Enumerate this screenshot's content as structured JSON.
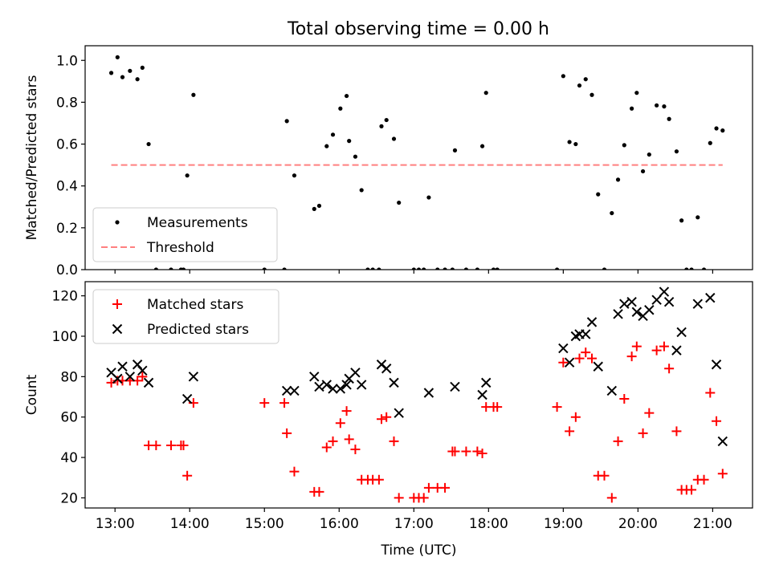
{
  "title": "Total observing time = 0.00 h",
  "colors": {
    "measurement": "#000000",
    "threshold": "#ff8080",
    "matched": "#ff0000",
    "predicted": "#000000"
  },
  "chart_data": [
    {
      "type": "scatter",
      "title": "Total observing time = 0.00 h",
      "xlabel": "",
      "ylabel": "Matched/Predicted stars",
      "xlim": [
        "12:36",
        "21:32"
      ],
      "ylim": [
        0,
        1.07
      ],
      "x_ticks": [
        "13:00",
        "14:00",
        "15:00",
        "16:00",
        "17:00",
        "18:00",
        "19:00",
        "20:00",
        "21:00"
      ],
      "y_ticks": [
        "0.0",
        "0.2",
        "0.4",
        "0.6",
        "0.8",
        "1.0"
      ],
      "legend_position": "lower-left",
      "grid": false,
      "series": [
        {
          "name": "Measurements",
          "marker": "dot",
          "points": [
            [
              "12:57",
              0.94
            ],
            [
              "13:02",
              1.015
            ],
            [
              "13:06",
              0.92
            ],
            [
              "13:12",
              0.95
            ],
            [
              "13:18",
              0.91
            ],
            [
              "13:22",
              0.965
            ],
            [
              "13:27",
              0.6
            ],
            [
              "13:33",
              0
            ],
            [
              "13:45",
              0
            ],
            [
              "13:53",
              0
            ],
            [
              "13:55",
              0
            ],
            [
              "13:58",
              0.45
            ],
            [
              "14:03",
              0.835
            ],
            [
              "15:00",
              0
            ],
            [
              "15:16",
              0
            ],
            [
              "15:18",
              0.71
            ],
            [
              "15:24",
              0.45
            ],
            [
              "15:40",
              0.29
            ],
            [
              "15:44",
              0.305
            ],
            [
              "15:50",
              0.59
            ],
            [
              "15:55",
              0.645
            ],
            [
              "16:01",
              0.77
            ],
            [
              "16:06",
              0.83
            ],
            [
              "16:08",
              0.615
            ],
            [
              "16:13",
              0.54
            ],
            [
              "16:18",
              0.38
            ],
            [
              "16:23",
              0
            ],
            [
              "16:27",
              0
            ],
            [
              "16:32",
              0
            ],
            [
              "16:34",
              0.685
            ],
            [
              "16:38",
              0.715
            ],
            [
              "16:44",
              0.625
            ],
            [
              "16:48",
              0.32
            ],
            [
              "17:00",
              0
            ],
            [
              "17:04",
              0
            ],
            [
              "17:08",
              0
            ],
            [
              "17:12",
              0.345
            ],
            [
              "17:19",
              0
            ],
            [
              "17:25",
              0
            ],
            [
              "17:31",
              0
            ],
            [
              "17:33",
              0.57
            ],
            [
              "17:42",
              0
            ],
            [
              "17:51",
              0
            ],
            [
              "17:55",
              0.59
            ],
            [
              "17:58",
              0.845
            ],
            [
              "18:04",
              0
            ],
            [
              "18:07",
              0
            ],
            [
              "18:55",
              0
            ],
            [
              "19:00",
              0.925
            ],
            [
              "19:05",
              0.61
            ],
            [
              "19:10",
              0.6
            ],
            [
              "19:13",
              0.88
            ],
            [
              "19:18",
              0.91
            ],
            [
              "19:23",
              0.835
            ],
            [
              "19:28",
              0.36
            ],
            [
              "19:33",
              0
            ],
            [
              "19:39",
              0.27
            ],
            [
              "19:44",
              0.43
            ],
            [
              "19:49",
              0.595
            ],
            [
              "19:55",
              0.77
            ],
            [
              "19:59",
              0.845
            ],
            [
              "20:04",
              0.47
            ],
            [
              "20:09",
              0.55
            ],
            [
              "20:15",
              0.785
            ],
            [
              "20:21",
              0.78
            ],
            [
              "20:25",
              0.72
            ],
            [
              "20:31",
              0.565
            ],
            [
              "20:35",
              0.235
            ],
            [
              "20:39",
              0
            ],
            [
              "20:43",
              0
            ],
            [
              "20:48",
              0.25
            ],
            [
              "20:53",
              0
            ],
            [
              "20:58",
              0.605
            ],
            [
              "21:03",
              0.675
            ],
            [
              "21:08",
              0.665
            ]
          ]
        },
        {
          "name": "Threshold",
          "style": "dashed-line",
          "points": [
            [
              "12:57",
              0.5
            ],
            [
              "21:08",
              0.5
            ]
          ]
        }
      ]
    },
    {
      "type": "scatter",
      "title": "",
      "xlabel": "Time (UTC)",
      "ylabel": "Count",
      "xlim": [
        "12:36",
        "21:32"
      ],
      "ylim": [
        15,
        127
      ],
      "x_ticks": [
        "13:00",
        "14:00",
        "15:00",
        "16:00",
        "17:00",
        "18:00",
        "19:00",
        "20:00",
        "21:00"
      ],
      "y_ticks": [
        "20",
        "40",
        "60",
        "80",
        "100",
        "120"
      ],
      "legend_position": "upper-left",
      "grid": false,
      "series": [
        {
          "name": "Matched stars",
          "marker": "plus",
          "points": [
            [
              "12:57",
              77
            ],
            [
              "13:02",
              78
            ],
            [
              "13:06",
              78
            ],
            [
              "13:12",
              78
            ],
            [
              "13:18",
              78
            ],
            [
              "13:22",
              80
            ],
            [
              "13:27",
              46
            ],
            [
              "13:33",
              46
            ],
            [
              "13:45",
              46
            ],
            [
              "13:53",
              46
            ],
            [
              "13:55",
              46
            ],
            [
              "13:58",
              31
            ],
            [
              "14:03",
              67
            ],
            [
              "15:00",
              67
            ],
            [
              "15:16",
              67
            ],
            [
              "15:18",
              52
            ],
            [
              "15:24",
              33
            ],
            [
              "15:40",
              23
            ],
            [
              "15:44",
              23
            ],
            [
              "15:50",
              45
            ],
            [
              "15:55",
              48
            ],
            [
              "16:01",
              57
            ],
            [
              "16:06",
              63
            ],
            [
              "16:08",
              49
            ],
            [
              "16:13",
              44
            ],
            [
              "16:18",
              29
            ],
            [
              "16:23",
              29
            ],
            [
              "16:27",
              29
            ],
            [
              "16:32",
              29
            ],
            [
              "16:34",
              59
            ],
            [
              "16:38",
              60
            ],
            [
              "16:44",
              48
            ],
            [
              "16:48",
              20
            ],
            [
              "17:00",
              20
            ],
            [
              "17:04",
              20
            ],
            [
              "17:08",
              20
            ],
            [
              "17:12",
              25
            ],
            [
              "17:19",
              25
            ],
            [
              "17:25",
              25
            ],
            [
              "17:31",
              43
            ],
            [
              "17:33",
              43
            ],
            [
              "17:42",
              43
            ],
            [
              "17:51",
              43
            ],
            [
              "17:55",
              42
            ],
            [
              "17:58",
              65
            ],
            [
              "18:04",
              65
            ],
            [
              "18:07",
              65
            ],
            [
              "18:55",
              65
            ],
            [
              "19:00",
              87
            ],
            [
              "19:05",
              53
            ],
            [
              "19:10",
              60
            ],
            [
              "19:13",
              89
            ],
            [
              "19:18",
              92
            ],
            [
              "19:23",
              89
            ],
            [
              "19:28",
              31
            ],
            [
              "19:33",
              31
            ],
            [
              "19:39",
              20
            ],
            [
              "19:44",
              48
            ],
            [
              "19:49",
              69
            ],
            [
              "19:55",
              90
            ],
            [
              "19:59",
              95
            ],
            [
              "20:04",
              52
            ],
            [
              "20:09",
              62
            ],
            [
              "20:15",
              93
            ],
            [
              "20:21",
              95
            ],
            [
              "20:25",
              84
            ],
            [
              "20:31",
              53
            ],
            [
              "20:35",
              24
            ],
            [
              "20:39",
              24
            ],
            [
              "20:43",
              24
            ],
            [
              "20:48",
              29
            ],
            [
              "20:53",
              29
            ],
            [
              "20:58",
              72
            ],
            [
              "21:03",
              58
            ],
            [
              "21:08",
              32
            ]
          ]
        },
        {
          "name": "Predicted stars",
          "marker": "x",
          "points": [
            [
              "12:57",
              82
            ],
            [
              "13:02",
              79
            ],
            [
              "13:06",
              85
            ],
            [
              "13:12",
              80
            ],
            [
              "13:18",
              86
            ],
            [
              "13:22",
              83
            ],
            [
              "13:27",
              77
            ],
            [
              "13:58",
              69
            ],
            [
              "14:03",
              80
            ],
            [
              "15:18",
              73
            ],
            [
              "15:24",
              73
            ],
            [
              "15:40",
              80
            ],
            [
              "15:44",
              75
            ],
            [
              "15:50",
              76
            ],
            [
              "15:55",
              74
            ],
            [
              "16:01",
              74
            ],
            [
              "16:06",
              76
            ],
            [
              "16:08",
              79
            ],
            [
              "16:13",
              82
            ],
            [
              "16:18",
              76
            ],
            [
              "16:34",
              86
            ],
            [
              "16:38",
              84
            ],
            [
              "16:44",
              77
            ],
            [
              "16:48",
              62
            ],
            [
              "17:12",
              72
            ],
            [
              "17:33",
              75
            ],
            [
              "17:55",
              71
            ],
            [
              "17:58",
              77
            ],
            [
              "19:00",
              94
            ],
            [
              "19:05",
              87
            ],
            [
              "19:10",
              100
            ],
            [
              "19:13",
              101
            ],
            [
              "19:18",
              101
            ],
            [
              "19:23",
              107
            ],
            [
              "19:28",
              85
            ],
            [
              "19:39",
              73
            ],
            [
              "19:44",
              111
            ],
            [
              "19:49",
              116
            ],
            [
              "19:55",
              117
            ],
            [
              "19:59",
              112
            ],
            [
              "20:04",
              110
            ],
            [
              "20:09",
              113
            ],
            [
              "20:15",
              118
            ],
            [
              "20:21",
              122
            ],
            [
              "20:25",
              117
            ],
            [
              "20:31",
              93
            ],
            [
              "20:35",
              102
            ],
            [
              "20:48",
              116
            ],
            [
              "20:58",
              119
            ],
            [
              "21:03",
              86
            ],
            [
              "21:08",
              48
            ]
          ]
        }
      ]
    }
  ]
}
